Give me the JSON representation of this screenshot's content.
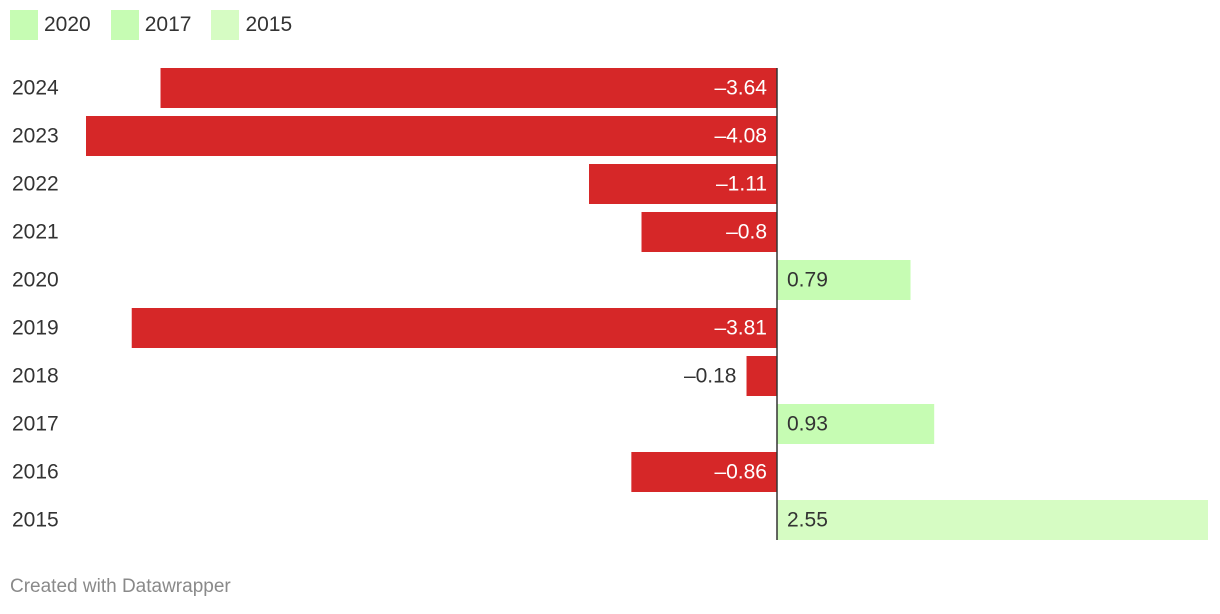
{
  "legend": [
    {
      "label": "2020",
      "color": "#c6fcb3"
    },
    {
      "label": "2017",
      "color": "#c6fcb3"
    },
    {
      "label": "2015",
      "color": "#d6fcc3"
    }
  ],
  "chart_data": {
    "type": "bar",
    "orientation": "horizontal",
    "categories": [
      "2024",
      "2023",
      "2022",
      "2021",
      "2020",
      "2019",
      "2018",
      "2017",
      "2016",
      "2015"
    ],
    "values": [
      -3.64,
      -4.08,
      -1.11,
      -0.8,
      0.79,
      -3.81,
      -0.18,
      0.93,
      -0.86,
      2.55
    ],
    "labels": [
      "–3.64",
      "–4.08",
      "–1.11",
      "–0.8",
      "0.79",
      "–3.81",
      "–0.18",
      "0.93",
      "–0.86",
      "2.55"
    ],
    "colors": [
      "#d62728",
      "#d62728",
      "#d62728",
      "#d62728",
      "#c6fcb3",
      "#d62728",
      "#d62728",
      "#c6fcb3",
      "#d62728",
      "#d6fcc3"
    ],
    "xlim": [
      -4.08,
      2.55
    ],
    "grid": false,
    "legend_position": "top-left"
  },
  "footer": {
    "credit": "Created with Datawrapper"
  }
}
